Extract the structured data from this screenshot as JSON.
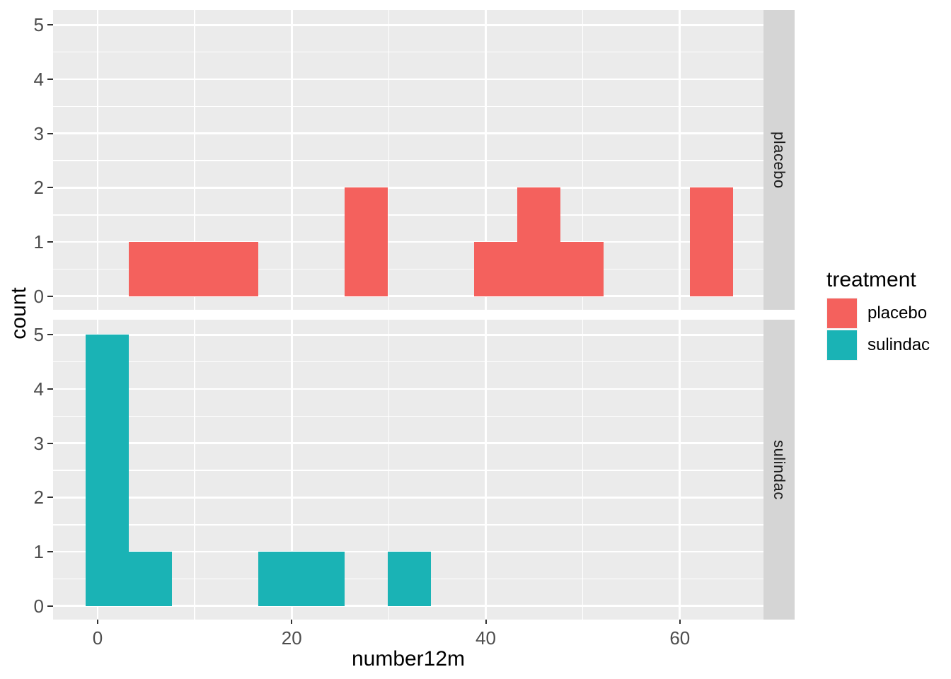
{
  "chart_data": {
    "type": "histogram",
    "faceted": true,
    "facet_variable_position": "right",
    "title": "",
    "xlabel": "number12m",
    "ylabel": "count",
    "x_ticks": [
      0,
      20,
      40,
      60
    ],
    "y_ticks": [
      0,
      1,
      2,
      3,
      4,
      5
    ],
    "xlim": [
      -4.59,
      68.62
    ],
    "ylim": [
      -0.25,
      5.28
    ],
    "binwidth": 4.45,
    "grid": {
      "major_x": [
        0,
        20,
        40,
        60
      ],
      "minor_x": [
        10,
        30,
        50
      ],
      "major_y": [
        0,
        1,
        2,
        3,
        4,
        5
      ],
      "minor_y": [
        0.5,
        1.5,
        2.5,
        3.5,
        4.5
      ],
      "grid_on": true
    },
    "facets": [
      {
        "label": "placebo",
        "color": "#F4615D",
        "bins": [
          {
            "x0": 3.2,
            "x1": 7.65,
            "count": 1
          },
          {
            "x0": 7.65,
            "x1": 12.1,
            "count": 1
          },
          {
            "x0": 12.1,
            "x1": 16.55,
            "count": 1
          },
          {
            "x0": 25.45,
            "x1": 29.9,
            "count": 2
          },
          {
            "x0": 38.8,
            "x1": 43.25,
            "count": 1
          },
          {
            "x0": 43.25,
            "x1": 47.7,
            "count": 2
          },
          {
            "x0": 47.7,
            "x1": 52.15,
            "count": 1
          },
          {
            "x0": 61.05,
            "x1": 65.5,
            "count": 2
          }
        ]
      },
      {
        "label": "sulindac",
        "color": "#1AB3B5",
        "bins": [
          {
            "x0": -1.25,
            "x1": 3.2,
            "count": 5
          },
          {
            "x0": 3.2,
            "x1": 7.65,
            "count": 1
          },
          {
            "x0": 16.55,
            "x1": 21.0,
            "count": 1
          },
          {
            "x0": 21.0,
            "x1": 25.45,
            "count": 1
          },
          {
            "x0": 29.9,
            "x1": 34.35,
            "count": 1
          }
        ]
      }
    ],
    "legend": {
      "title": "treatment",
      "position": "right",
      "items": [
        {
          "label": "placebo",
          "color": "#F4615D"
        },
        {
          "label": "sulindac",
          "color": "#1AB3B5"
        }
      ]
    },
    "colors": {
      "panel_background": "#EBEBEB",
      "strip_background": "#D5D5D5",
      "gridline": "#FFFFFF",
      "tick_label": "#4D4D4D",
      "axis_title": "#000000"
    }
  }
}
